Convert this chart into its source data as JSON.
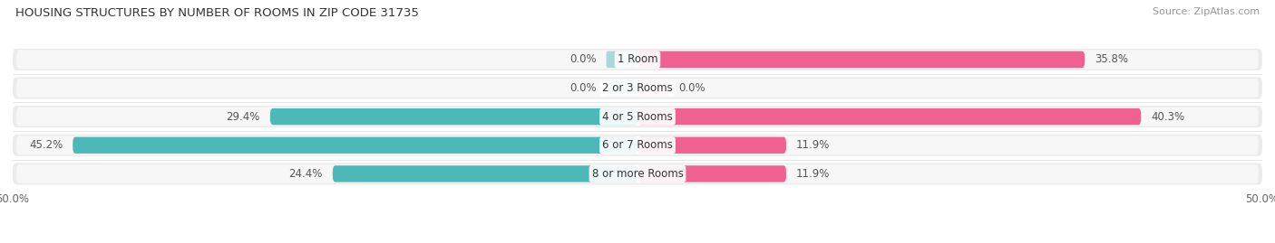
{
  "title": "HOUSING STRUCTURES BY NUMBER OF ROOMS IN ZIP CODE 31735",
  "source": "Source: ZipAtlas.com",
  "categories": [
    "1 Room",
    "2 or 3 Rooms",
    "4 or 5 Rooms",
    "6 or 7 Rooms",
    "8 or more Rooms"
  ],
  "owner_values": [
    0.0,
    0.0,
    29.4,
    45.2,
    24.4
  ],
  "renter_values": [
    35.8,
    0.0,
    40.3,
    11.9,
    11.9
  ],
  "owner_color": "#4db8b8",
  "renter_color": "#f06090",
  "owner_color_light": "#a8d8d8",
  "renter_color_light": "#f5afc8",
  "row_bg_color": "#ebebeb",
  "row_bg_inner": "#f7f7f7",
  "x_min": -50.0,
  "x_max": 50.0,
  "bar_height": 0.58,
  "label_fontsize": 8.5,
  "title_fontsize": 9.5,
  "source_fontsize": 8,
  "cat_fontsize": 8.5
}
